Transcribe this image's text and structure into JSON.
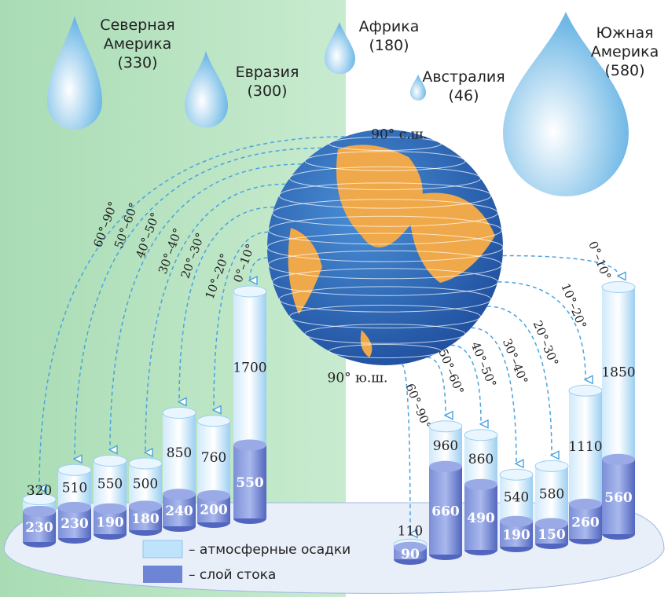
{
  "continents": [
    {
      "name": "Северная Америка",
      "runoff": "(330)"
    },
    {
      "name": "Евразия",
      "runoff": "(300)"
    },
    {
      "name": "Африка",
      "runoff": "(180)"
    },
    {
      "name": "Австралия",
      "runoff": "(46)"
    },
    {
      "name": "Южная Америка",
      "runoff": "(580)"
    }
  ],
  "globe": {
    "north_pole": "90° с.ш.",
    "south_pole": "90° ю.ш."
  },
  "north": {
    "bands": [
      "60°–90°",
      "50°–60°",
      "40°–50°",
      "30°–40°",
      "20°–30°",
      "10°–20°",
      "0°–10°"
    ],
    "precipitation": [
      320,
      510,
      550,
      500,
      850,
      760,
      1700
    ],
    "runoff": [
      230,
      230,
      190,
      180,
      240,
      200,
      550
    ]
  },
  "south": {
    "bands": [
      "60°–90°",
      "50°–60°",
      "40°–50°",
      "30°–40°",
      "20°–30°",
      "10°–20°",
      "0°–10°"
    ],
    "precipitation": [
      110,
      960,
      860,
      540,
      580,
      1110,
      1850
    ],
    "runoff": [
      90,
      660,
      490,
      190,
      150,
      260,
      560
    ]
  },
  "legend": {
    "precipitation": "– атмосферные осадки",
    "runoff": "– слой стока"
  }
}
